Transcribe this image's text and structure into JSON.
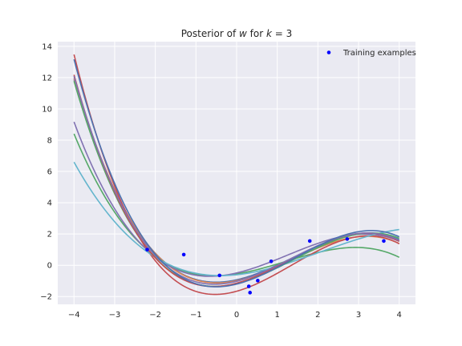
{
  "chart_data": {
    "type": "line",
    "title_prefix": "Posterior of ",
    "title_w": "w",
    "title_mid": " for ",
    "title_k": "k",
    "title_suffix": " = 3",
    "xlim": [
      -4.4,
      4.4
    ],
    "ylim": [
      -2.5,
      14.3
    ],
    "xticks": [
      -4,
      -3,
      -2,
      -1,
      0,
      1,
      2,
      3,
      4
    ],
    "yticks": [
      -2,
      0,
      2,
      4,
      6,
      8,
      10,
      12,
      14
    ],
    "grid": true,
    "legend_position": "top-right",
    "legend_label": "Training examples",
    "points": {
      "color": "#0000ff",
      "x": [
        -2.2,
        -1.3,
        -0.42,
        0.3,
        0.33,
        0.52,
        0.85,
        1.8,
        2.72,
        3.62
      ],
      "y": [
        1.0,
        0.68,
        -0.65,
        -1.35,
        -1.75,
        -0.98,
        0.25,
        1.55,
        1.68,
        1.55
      ]
    },
    "series": [
      {
        "color": "#4c72b0",
        "y_at_x": [
          [
            -4,
            11.9
          ],
          [
            -2,
            0.7
          ],
          [
            0,
            -0.9
          ],
          [
            1,
            0.1
          ],
          [
            3,
            1.85
          ],
          [
            4,
            1.7
          ]
        ]
      },
      {
        "color": "#dd8452",
        "y_at_x": [
          [
            -4,
            12.0
          ],
          [
            -2,
            0.7
          ],
          [
            0,
            -0.95
          ],
          [
            1,
            0.0
          ],
          [
            3,
            1.7
          ],
          [
            4,
            1.45
          ]
        ]
      },
      {
        "color": "#55a868",
        "y_at_x": [
          [
            -4,
            8.4
          ],
          [
            -2,
            0.6
          ],
          [
            0,
            -0.6
          ],
          [
            1,
            0.1
          ],
          [
            3,
            1.15
          ],
          [
            4,
            0.5
          ]
        ]
      },
      {
        "color": "#c44e52",
        "y_at_x": [
          [
            -4,
            13.5
          ],
          [
            -2,
            0.2
          ],
          [
            0,
            -1.5
          ],
          [
            1,
            -0.6
          ],
          [
            3,
            1.8
          ],
          [
            4,
            1.4
          ]
        ]
      },
      {
        "color": "#8172b2",
        "y_at_x": [
          [
            -4,
            9.1
          ],
          [
            -2,
            0.8
          ],
          [
            0,
            -0.9
          ],
          [
            1,
            0.5
          ],
          [
            3,
            2.2
          ],
          [
            4,
            1.4
          ]
        ]
      },
      {
        "color": "#64b5cd",
        "y_at_x": [
          [
            -4,
            6.6
          ],
          [
            -2,
            0.5
          ],
          [
            0,
            -0.6
          ],
          [
            1,
            -0.05
          ],
          [
            3,
            1.65
          ],
          [
            4,
            2.3
          ]
        ]
      },
      {
        "color": "#55a868",
        "y_at_x": [
          [
            -4,
            11.8
          ],
          [
            -2,
            0.4
          ],
          [
            0,
            -1.1
          ],
          [
            1,
            -0.1
          ],
          [
            3,
            1.85
          ],
          [
            4,
            1.8
          ]
        ]
      },
      {
        "color": "#c44e52",
        "y_at_x": [
          [
            -4,
            12.2
          ],
          [
            -2,
            0.4
          ],
          [
            0,
            -1.1
          ],
          [
            1,
            0.0
          ],
          [
            3,
            1.9
          ],
          [
            4,
            1.6
          ]
        ]
      },
      {
        "color": "#8172b2",
        "y_at_x": [
          [
            -4,
            12.1
          ],
          [
            -2,
            0.6
          ],
          [
            0,
            -1.0
          ],
          [
            1,
            0.0
          ],
          [
            3,
            2.0
          ],
          [
            4,
            1.6
          ]
        ]
      },
      {
        "color": "#4c72b0",
        "y_at_x": [
          [
            -4,
            13.2
          ],
          [
            -2,
            0.6
          ],
          [
            0,
            -1.1
          ],
          [
            1,
            -0.1
          ],
          [
            3,
            2.0
          ],
          [
            4,
            1.9
          ]
        ]
      }
    ]
  },
  "style": {
    "axes_background": "#eaeaf2",
    "grid_color": "#ffffff",
    "text_color": "#262626"
  }
}
